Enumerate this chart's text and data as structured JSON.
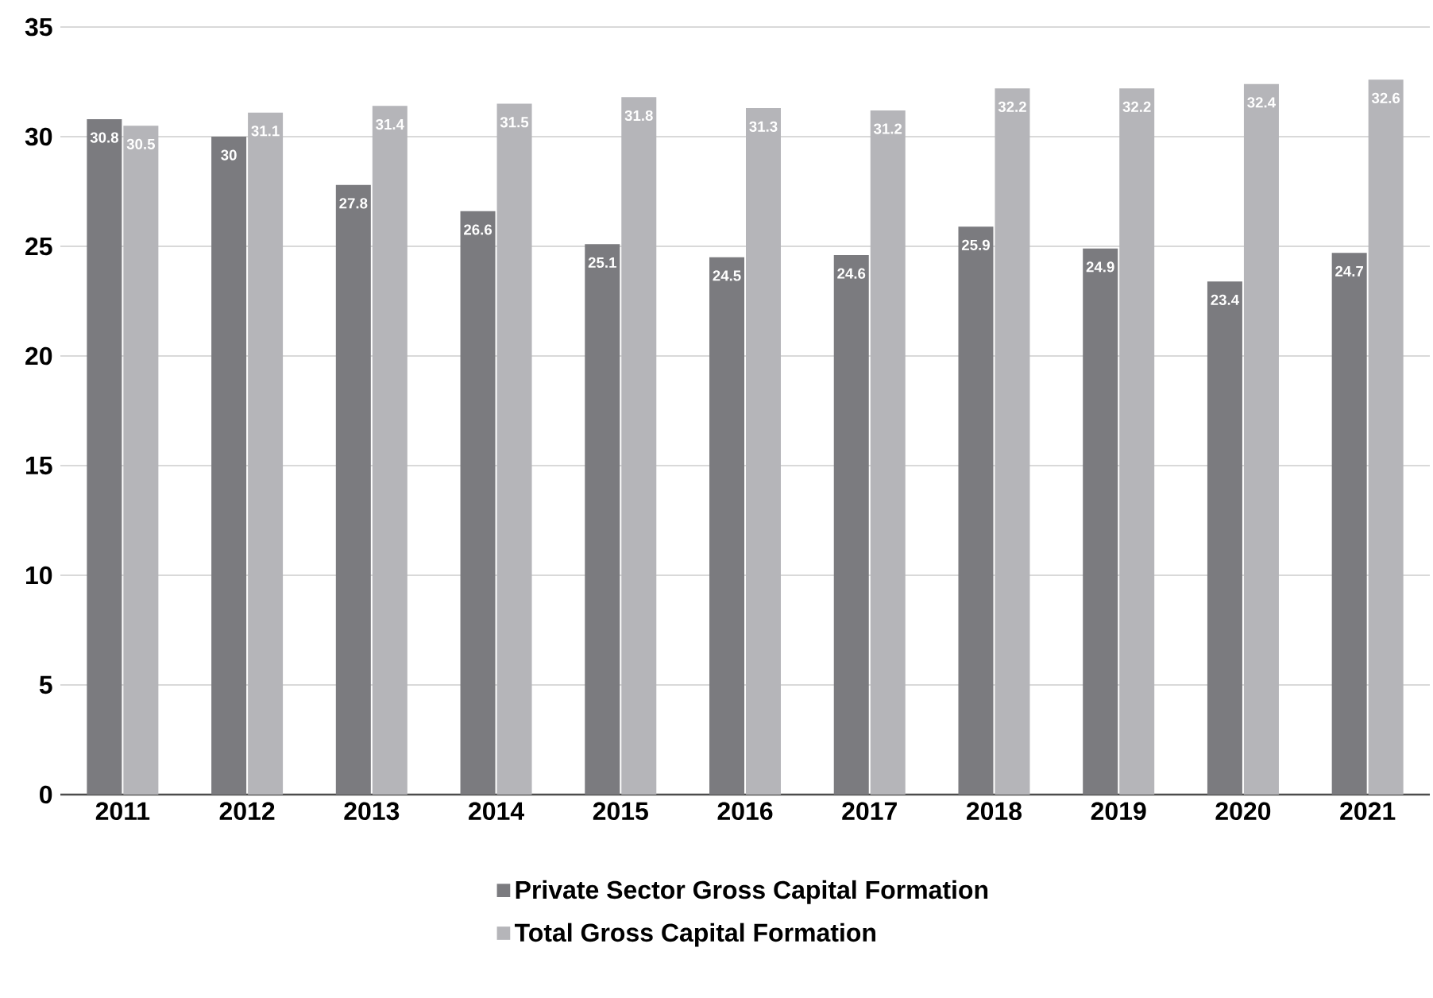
{
  "chart_data": {
    "type": "bar",
    "categories": [
      "2011",
      "2012",
      "2013",
      "2014",
      "2015",
      "2016",
      "2017",
      "2018",
      "2019",
      "2020",
      "2021"
    ],
    "series": [
      {
        "name": "Private Sector Gross Capital Formation",
        "color": "#7b7b7f",
        "values": [
          30.8,
          30,
          27.8,
          26.6,
          25.1,
          24.5,
          24.6,
          25.9,
          24.9,
          23.4,
          24.7
        ]
      },
      {
        "name": "Total Gross Capital Formation",
        "color": "#b5b5b9",
        "values": [
          30.5,
          31.1,
          31.4,
          31.5,
          31.8,
          31.3,
          31.2,
          32.2,
          32.2,
          32.4,
          32.6
        ]
      }
    ],
    "ylim": [
      0,
      35
    ],
    "yticks": [
      0,
      5,
      10,
      15,
      20,
      25,
      30,
      35
    ],
    "grid": "y",
    "legend": "bottom",
    "data_labels": true
  }
}
